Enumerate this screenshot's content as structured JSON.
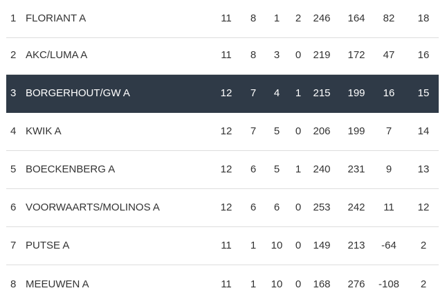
{
  "standings": {
    "rows": [
      {
        "pos": "1",
        "team": "FLORIANT A",
        "played": "11",
        "won": "8",
        "lost": "1",
        "draw": "2",
        "goals_for": "246",
        "goals_against": "164",
        "diff": "82",
        "points": "18",
        "highlight": false
      },
      {
        "pos": "2",
        "team": "AKC/LUMA A",
        "played": "11",
        "won": "8",
        "lost": "3",
        "draw": "0",
        "goals_for": "219",
        "goals_against": "172",
        "diff": "47",
        "points": "16",
        "highlight": false
      },
      {
        "pos": "3",
        "team": "BORGERHOUT/GW A",
        "played": "12",
        "won": "7",
        "lost": "4",
        "draw": "1",
        "goals_for": "215",
        "goals_against": "199",
        "diff": "16",
        "points": "15",
        "highlight": true
      },
      {
        "pos": "4",
        "team": "KWIK A",
        "played": "12",
        "won": "7",
        "lost": "5",
        "draw": "0",
        "goals_for": "206",
        "goals_against": "199",
        "diff": "7",
        "points": "14",
        "highlight": false
      },
      {
        "pos": "5",
        "team": "BOECKENBERG A",
        "played": "12",
        "won": "6",
        "lost": "5",
        "draw": "1",
        "goals_for": "240",
        "goals_against": "231",
        "diff": "9",
        "points": "13",
        "highlight": false
      },
      {
        "pos": "6",
        "team": "VOORWAARTS/MOLINOS A",
        "played": "12",
        "won": "6",
        "lost": "6",
        "draw": "0",
        "goals_for": "253",
        "goals_against": "242",
        "diff": "11",
        "points": "12",
        "highlight": false
      },
      {
        "pos": "7",
        "team": "PUTSE A",
        "played": "11",
        "won": "1",
        "lost": "10",
        "draw": "0",
        "goals_for": "149",
        "goals_against": "213",
        "diff": "-64",
        "points": "2",
        "highlight": false
      },
      {
        "pos": "8",
        "team": "MEEUWEN A",
        "played": "11",
        "won": "1",
        "lost": "10",
        "draw": "0",
        "goals_for": "168",
        "goals_against": "276",
        "diff": "-108",
        "points": "2",
        "highlight": false
      }
    ],
    "colors": {
      "highlight_bg": "#2f3a47",
      "highlight_text": "#ffffff",
      "text": "#333333",
      "divider": "#dddddd"
    }
  }
}
